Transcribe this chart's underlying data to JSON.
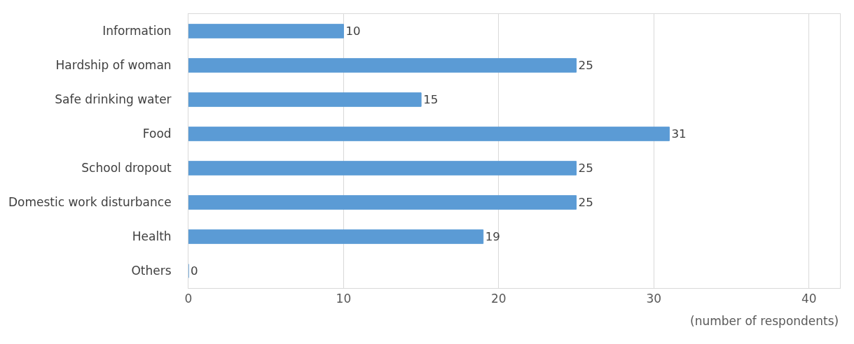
{
  "chart_data": {
    "type": "bar",
    "orientation": "horizontal",
    "categories": [
      "Information",
      "Hardship of woman",
      "Safe drinking water",
      "Food",
      "School dropout",
      "Domestic work disturbance",
      "Health",
      "Others"
    ],
    "values": [
      10,
      25,
      15,
      31,
      25,
      25,
      19,
      0
    ],
    "color": "#5b9bd5",
    "xlabel": "(number of respondents)",
    "xlim": [
      0,
      42
    ],
    "xticks": [
      0,
      10,
      20,
      30,
      40
    ],
    "grid": "x",
    "data_labels": true
  }
}
